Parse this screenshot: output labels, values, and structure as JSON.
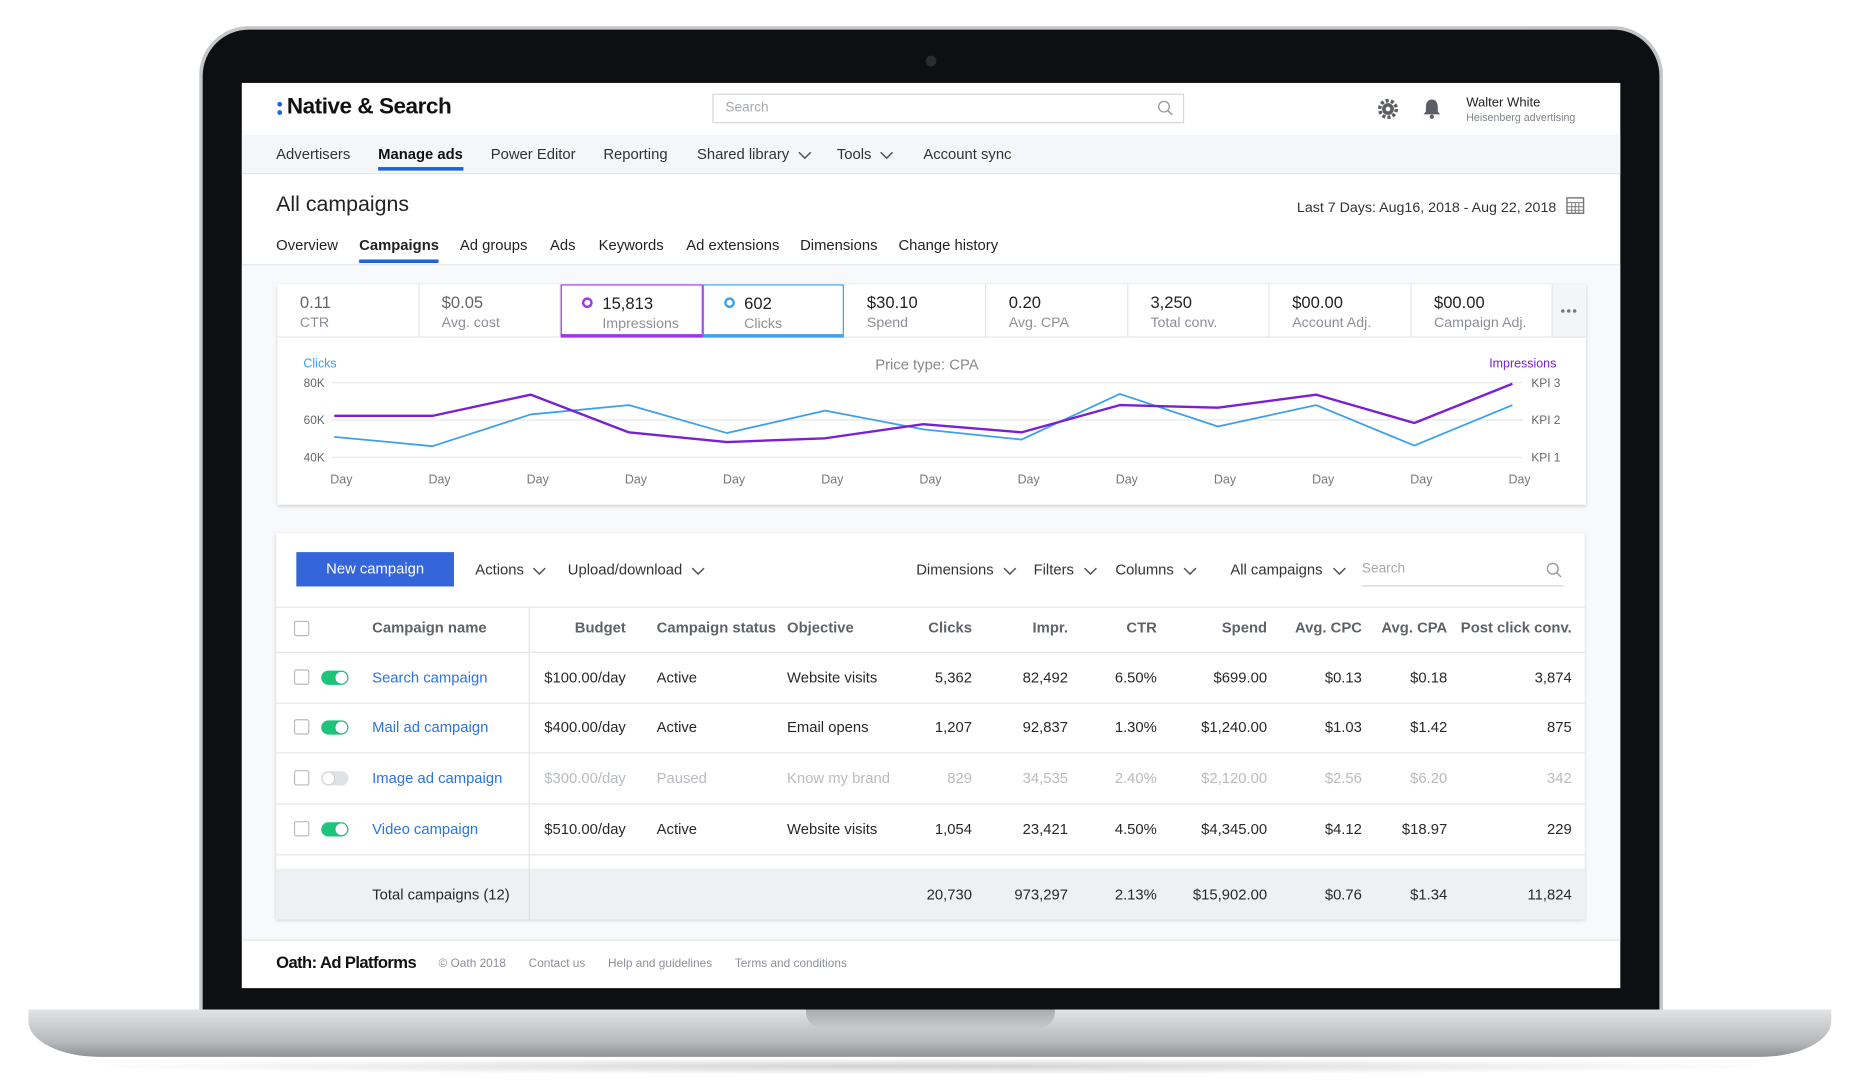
{
  "header": {
    "brand": "Native & Search",
    "search_placeholder": "Search",
    "user_name": "Walter White",
    "user_org": "Heisenberg advertising"
  },
  "nav": {
    "active_index": 1,
    "items": [
      {
        "label": "Advertisers"
      },
      {
        "label": "Manage ads"
      },
      {
        "label": "Power Editor"
      },
      {
        "label": "Reporting"
      },
      {
        "label": "Shared library",
        "dropdown": true
      },
      {
        "label": "Tools",
        "dropdown": true
      },
      {
        "label": "Account sync"
      }
    ]
  },
  "page": {
    "title": "All campaigns",
    "date_range": "Last 7 Days: Aug16, 2018 - Aug 22, 2018",
    "active_tab": 1,
    "tabs": [
      "Overview",
      "Campaigns",
      "Ad groups",
      "Ads",
      "Keywords",
      "Ad extensions",
      "Dimensions",
      "Change history"
    ]
  },
  "kpis": [
    {
      "value": "0.11",
      "label": "CTR"
    },
    {
      "value": "$0.05",
      "label": "Avg. cost"
    },
    {
      "value": "15,813",
      "label": "Impressions",
      "color": "#9b36e8"
    },
    {
      "value": "602",
      "label": "Clicks",
      "color": "#3ea0e8"
    },
    {
      "value": "$30.10",
      "label": "Spend"
    },
    {
      "value": "0.20",
      "label": "Avg. CPA"
    },
    {
      "value": "3,250",
      "label": "Total conv."
    },
    {
      "value": "$00.00",
      "label": "Account Adj."
    },
    {
      "value": "$00.00",
      "label": "Campaign Adj."
    }
  ],
  "chart_data": {
    "type": "line",
    "title": "Price type: CPA",
    "categories": [
      "Day",
      "Day",
      "Day",
      "Day",
      "Day",
      "Day",
      "Day",
      "Day",
      "Day",
      "Day",
      "Day",
      "Day",
      "Day"
    ],
    "ylim": [
      40000,
      80000
    ],
    "yticks": [
      {
        "value": 40000,
        "label": "40K"
      },
      {
        "value": 60000,
        "label": "60K"
      },
      {
        "value": 80000,
        "label": "80K"
      }
    ],
    "y2lim": [
      1,
      3
    ],
    "y2ticks": [
      {
        "value": 1,
        "label": "KPI 1"
      },
      {
        "value": 2,
        "label": "KPI 2"
      },
      {
        "value": 3,
        "label": "KPI 3"
      }
    ],
    "grid": true,
    "series": [
      {
        "name": "Clicks",
        "color": "#3ea0e8",
        "values": [
          51000,
          46000,
          63000,
          68000,
          53000,
          65000,
          55000,
          49500,
          74000,
          56500,
          68000,
          46300,
          68000
        ]
      },
      {
        "name": "Impressions",
        "color": "#7a1fd6",
        "axis": "y2",
        "values": [
          2.11,
          2.11,
          2.68,
          1.67,
          1.41,
          1.51,
          1.89,
          1.67,
          2.4,
          2.33,
          2.68,
          1.92,
          2.97
        ]
      }
    ]
  },
  "toolbar": {
    "button": "New campaign",
    "left_menus": [
      "Actions",
      "Upload/download"
    ],
    "right_menus": [
      "Dimensions",
      "Filters",
      "Columns",
      "All campaigns"
    ],
    "search_placeholder": "Search"
  },
  "table": {
    "columns": [
      "Campaign name",
      "Budget",
      "Campaign status",
      "Objective",
      "Clicks",
      "Impr.",
      "CTR",
      "Spend",
      "Avg. CPC",
      "Avg. CPA",
      "Post click conv."
    ],
    "rows": [
      {
        "enabled": true,
        "cells": [
          "Search campaign",
          "$100.00/day",
          "Active",
          "Website visits",
          "5,362",
          "82,492",
          "6.50%",
          "$699.00",
          "$0.13",
          "$0.18",
          "3,874"
        ]
      },
      {
        "enabled": true,
        "cells": [
          "Mail ad campaign",
          "$400.00/day",
          "Active",
          "Email opens",
          "1,207",
          "92,837",
          "1.30%",
          "$1,240.00",
          "$1.03",
          "$1.42",
          "875"
        ]
      },
      {
        "enabled": false,
        "cells": [
          "Image ad campaign",
          "$300.00/day",
          "Paused",
          "Know my brand",
          "829",
          "34,535",
          "2.40%",
          "$2,120.00",
          "$2.56",
          "$6.20",
          "342"
        ]
      },
      {
        "enabled": true,
        "cells": [
          "Video campaign",
          "$510.00/day",
          "Active",
          "Website visits",
          "1,054",
          "23,421",
          "4.50%",
          "$4,345.00",
          "$4.12",
          "$18.97",
          "229"
        ]
      }
    ],
    "totals": {
      "label": "Total campaigns (12)",
      "values": [
        "20,730",
        "973,297",
        "2.13%",
        "$15,902.00",
        "$0.76",
        "$1.34",
        "11,824"
      ]
    }
  },
  "footer": {
    "brand": "Oath: Ad Platforms",
    "links": [
      "© Oath 2018",
      "Contact us",
      "Help and guidelines",
      "Terms and conditions"
    ]
  }
}
